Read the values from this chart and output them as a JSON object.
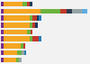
{
  "rows": [
    {
      "segments": [
        [
          0.4,
          "#7b2d8b"
        ],
        [
          2.8,
          "#f5a623"
        ],
        [
          0.6,
          "#6db33f"
        ],
        [
          0.5,
          "#c0392b"
        ],
        [
          0.4,
          "#1a3a5c"
        ]
      ]
    },
    {
      "segments": [
        [
          0.4,
          "#7b2d8b"
        ],
        [
          5.5,
          "#f5a623"
        ],
        [
          2.8,
          "#6db33f"
        ],
        [
          1.0,
          "#c0392b"
        ],
        [
          0.8,
          "#2c3e50"
        ],
        [
          1.5,
          "#95a5a6"
        ],
        [
          0.8,
          "#5dade2"
        ]
      ]
    },
    {
      "segments": [
        [
          0.4,
          "#7b2d8b"
        ],
        [
          3.8,
          "#f5a623"
        ],
        [
          0.5,
          "#6db33f"
        ],
        [
          0.6,
          "#c0392b"
        ],
        [
          0.3,
          "#1a3a5c"
        ],
        [
          0.4,
          "#2980b9"
        ]
      ]
    },
    {
      "segments": [
        [
          0.4,
          "#7b2d8b"
        ],
        [
          3.8,
          "#f5a623"
        ],
        [
          0.5,
          "#6db33f"
        ],
        [
          0.35,
          "#c0392b"
        ],
        [
          0.35,
          "#1a3a5c"
        ]
      ]
    },
    {
      "segments": [
        [
          0.4,
          "#7b2d8b"
        ],
        [
          3.5,
          "#f5a623"
        ],
        [
          0.5,
          "#6db33f"
        ],
        [
          0.3,
          "#c0392b"
        ]
      ]
    },
    {
      "segments": [
        [
          0.4,
          "#7b2d8b"
        ],
        [
          3.8,
          "#f5a623"
        ],
        [
          0.5,
          "#6db33f"
        ],
        [
          0.9,
          "#c0392b"
        ],
        [
          0.4,
          "#2980b9"
        ]
      ]
    },
    {
      "segments": [
        [
          0.4,
          "#7b2d8b"
        ],
        [
          2.5,
          "#f5a623"
        ],
        [
          0.4,
          "#6db33f"
        ],
        [
          0.3,
          "#c0392b"
        ]
      ]
    },
    {
      "segments": [
        [
          0.4,
          "#7b2d8b"
        ],
        [
          2.0,
          "#f5a623"
        ],
        [
          0.6,
          "#6db33f"
        ],
        [
          0.4,
          "#95a5a6"
        ],
        [
          0.3,
          "#2980b9"
        ]
      ]
    },
    {
      "segments": [
        [
          0.4,
          "#7b2d8b"
        ],
        [
          1.8,
          "#f5a623"
        ],
        [
          0.5,
          "#6db33f"
        ],
        [
          0.3,
          "#95a5a6"
        ]
      ]
    }
  ],
  "bg_color": "#f2f2f2",
  "bar_height": 0.72,
  "xlim": 13.0
}
